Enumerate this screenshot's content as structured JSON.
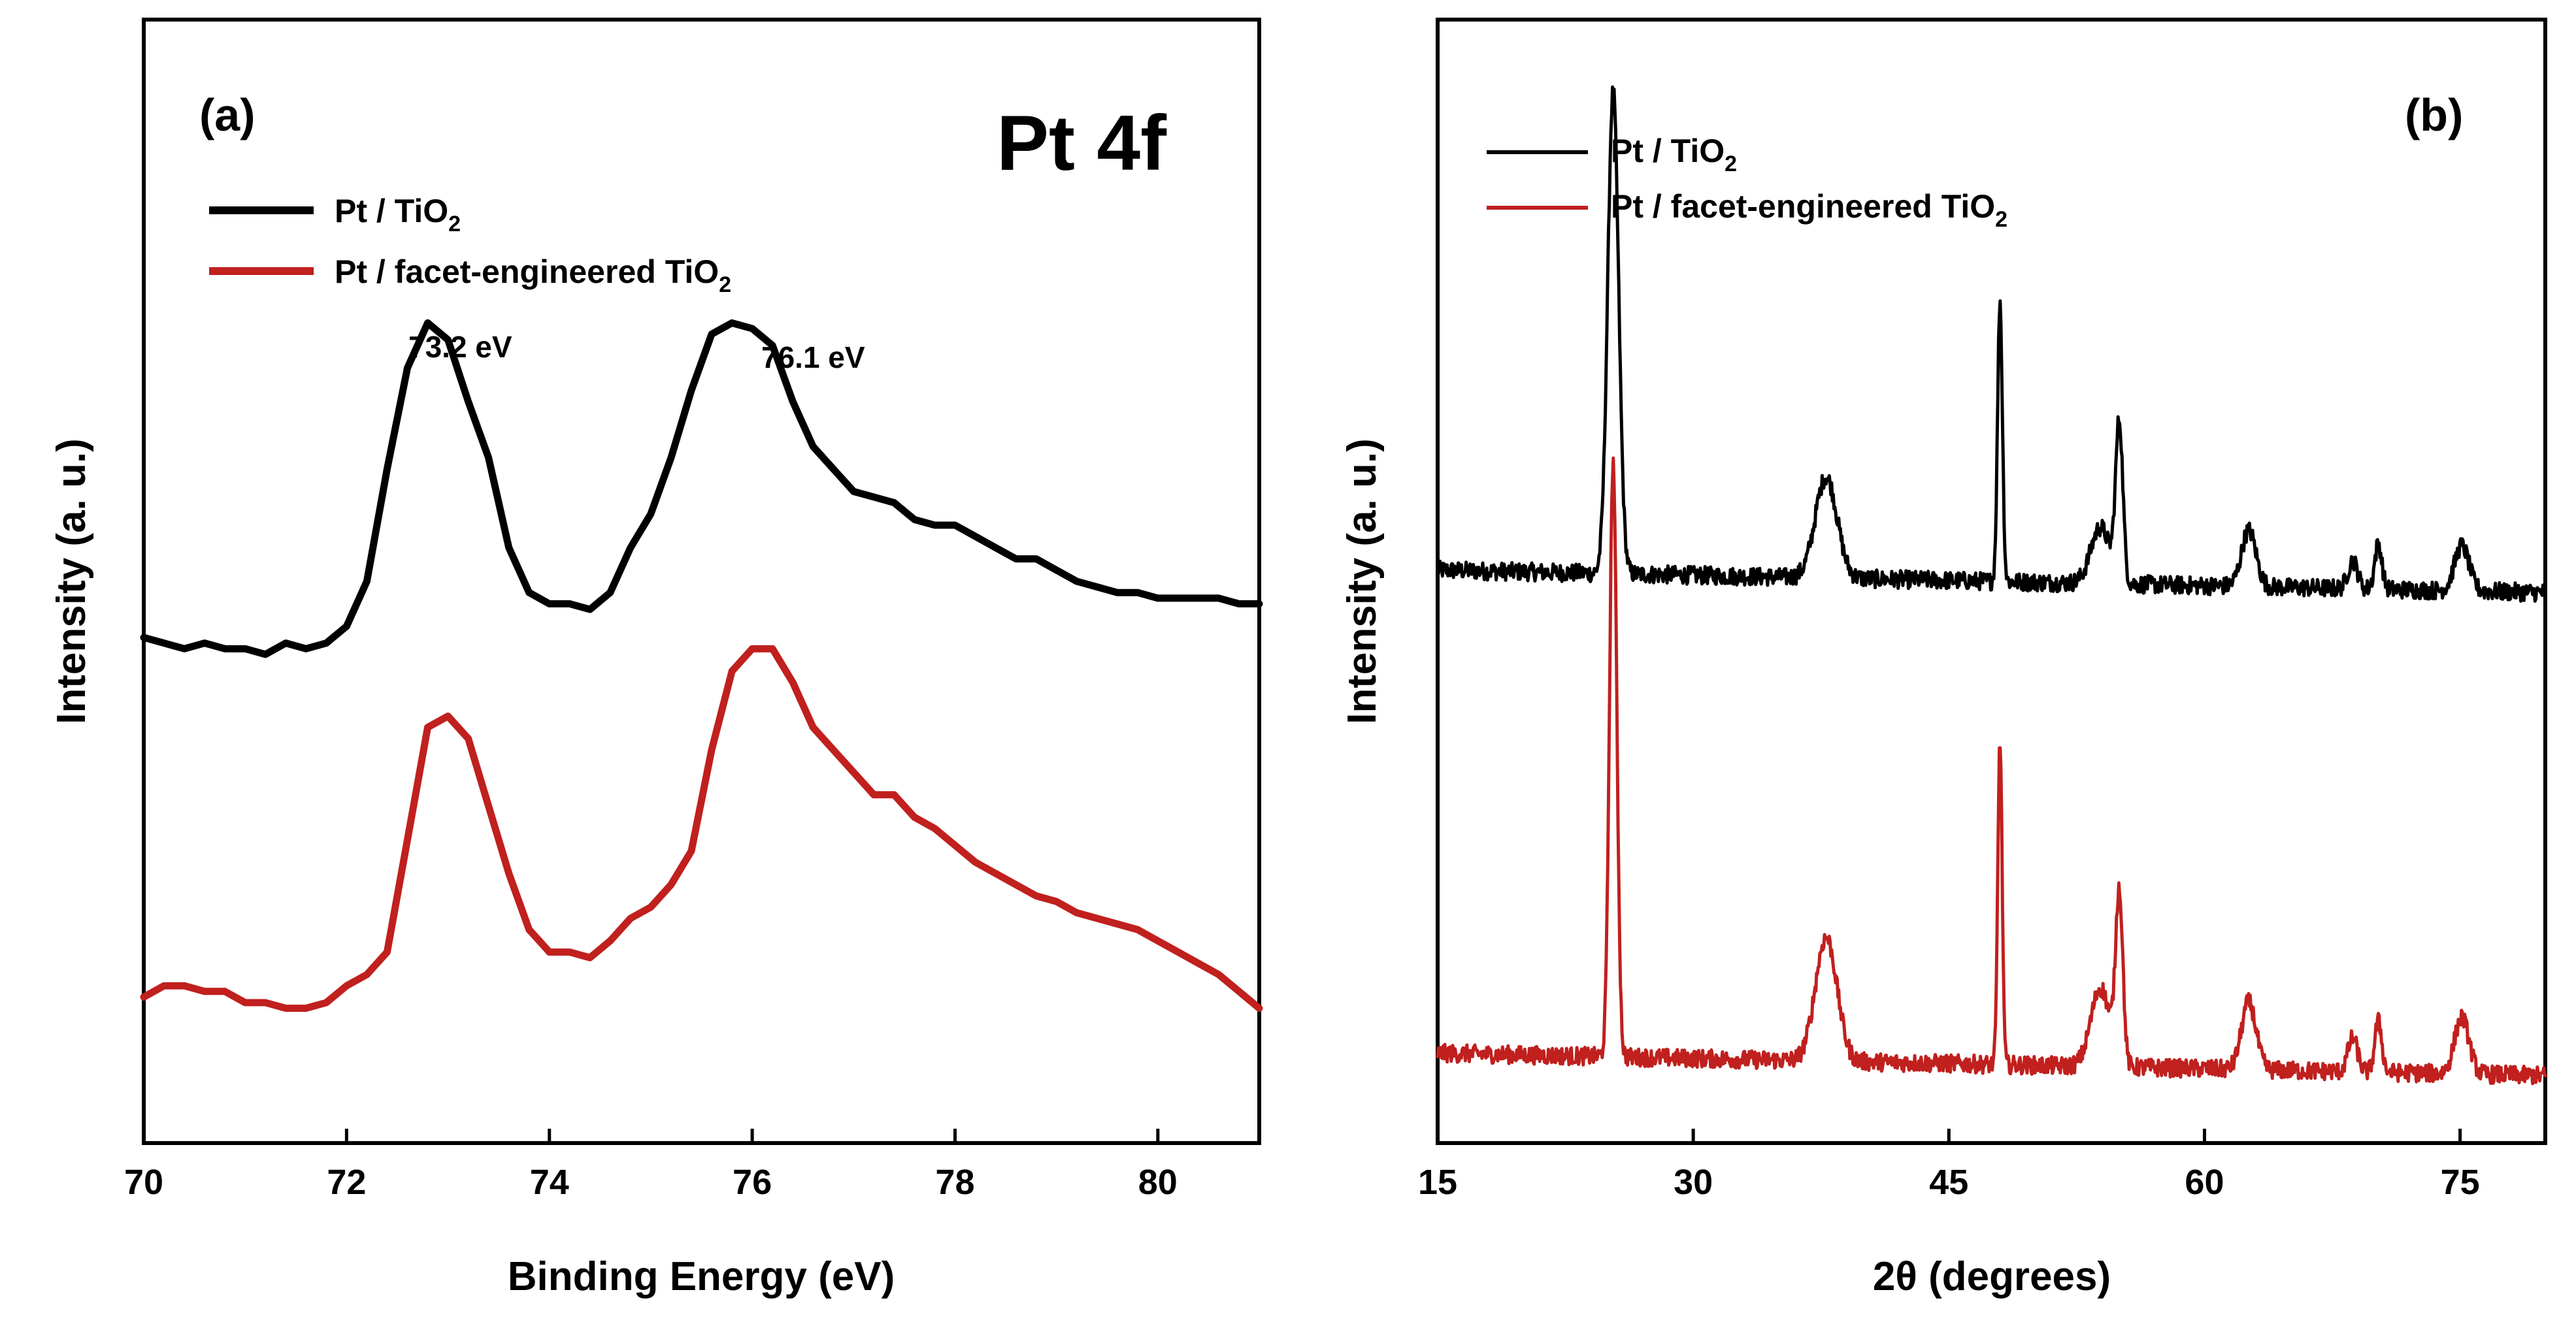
{
  "chart_data": [
    {
      "type": "line",
      "panel_label": "(a)",
      "title": "Pt 4f",
      "xlabel": "Binding Energy (eV)",
      "ylabel": "Intensity (a. u.)",
      "xlim": [
        70,
        81
      ],
      "ylim": [
        0,
        100
      ],
      "xticks": [
        "70",
        "72",
        "74",
        "76",
        "78",
        "80"
      ],
      "yticks_shown": false,
      "grid": false,
      "legend": {
        "placement": "top-left",
        "entries": [
          {
            "main": "Pt / TiO",
            "sub": "2"
          },
          {
            "main": "Pt / facet-engineered TiO",
            "sub": "2"
          }
        ]
      },
      "annotations": [
        {
          "text": "73.2 eV",
          "x": 73.2,
          "y": 87
        },
        {
          "text": "76.1 eV",
          "x": 76.1,
          "y": 86
        }
      ],
      "series": [
        {
          "name": "Pt / TiO2",
          "color": "#000000",
          "x": [
            70.0,
            70.2,
            70.4,
            70.6,
            70.8,
            71.0,
            71.2,
            71.4,
            71.6,
            71.8,
            72.0,
            72.2,
            72.4,
            72.6,
            72.8,
            73.0,
            73.2,
            73.4,
            73.6,
            73.8,
            74.0,
            74.2,
            74.4,
            74.6,
            74.8,
            75.0,
            75.2,
            75.4,
            75.6,
            75.8,
            76.0,
            76.2,
            76.4,
            76.6,
            76.8,
            77.0,
            77.2,
            77.4,
            77.6,
            77.8,
            78.0,
            78.2,
            78.4,
            78.6,
            78.8,
            79.0,
            79.2,
            79.4,
            79.6,
            79.8,
            80.0,
            80.2,
            80.4,
            80.6,
            80.8,
            81.0
          ],
          "y": [
            45,
            44.5,
            44,
            44.5,
            44,
            44,
            43.5,
            44.5,
            44,
            44.5,
            46,
            50,
            60,
            69,
            73,
            71.5,
            66,
            61,
            53,
            49,
            48,
            48,
            47.5,
            49,
            53,
            56,
            61,
            67,
            72,
            73,
            72.5,
            71,
            66,
            62,
            60,
            58,
            57.5,
            57,
            55.5,
            55,
            55,
            54,
            53,
            52,
            52,
            51,
            50,
            49.5,
            49,
            49,
            48.5,
            48.5,
            48.5,
            48.5,
            48,
            48
          ]
        },
        {
          "name": "Pt / facet-engineered TiO2",
          "color": "#c0201e",
          "x": [
            70.0,
            70.2,
            70.4,
            70.6,
            70.8,
            71.0,
            71.2,
            71.4,
            71.6,
            71.8,
            72.0,
            72.2,
            72.4,
            72.6,
            72.8,
            73.0,
            73.2,
            73.4,
            73.6,
            73.8,
            74.0,
            74.2,
            74.4,
            74.6,
            74.8,
            75.0,
            75.2,
            75.4,
            75.6,
            75.8,
            76.0,
            76.2,
            76.4,
            76.6,
            76.8,
            77.0,
            77.2,
            77.4,
            77.6,
            77.8,
            78.0,
            78.2,
            78.4,
            78.6,
            78.8,
            79.0,
            79.2,
            79.4,
            79.6,
            79.8,
            80.0,
            80.2,
            80.4,
            80.6,
            80.8,
            81.0
          ],
          "y": [
            13,
            14,
            14,
            13.5,
            13.5,
            12.5,
            12.5,
            12,
            12,
            12.5,
            14,
            15,
            17,
            27,
            37,
            38,
            36,
            30,
            24,
            19,
            17,
            17,
            16.5,
            18,
            20,
            21,
            23,
            26,
            35,
            42,
            44,
            44,
            41,
            37,
            35,
            33,
            31,
            31,
            29,
            28,
            26.5,
            25,
            24,
            23,
            22,
            21.5,
            20.5,
            20,
            19.5,
            19,
            18,
            17,
            16,
            15,
            13.5,
            12
          ]
        }
      ]
    },
    {
      "type": "line",
      "panel_label": "(b)",
      "xlabel": "2θ (degrees)",
      "ylabel": "Intensity (a. u.)",
      "xlim": [
        15,
        80
      ],
      "ylim": [
        0,
        100
      ],
      "xticks": [
        "15",
        "30",
        "45",
        "60",
        "75"
      ],
      "yticks_shown": false,
      "grid": false,
      "legend": {
        "placement": "top-left",
        "entries": [
          {
            "main": "Pt / TiO",
            "sub": "2"
          },
          {
            "main": "Pt / facet-engineered TiO",
            "sub": "2"
          }
        ]
      },
      "series": [
        {
          "name": "Pt / TiO2",
          "color": "#000000",
          "baseline": 51,
          "end_baseline": 49,
          "peaks": [
            {
              "x": 25.3,
              "height": 43,
              "width": 0.45
            },
            {
              "x": 37.8,
              "height": 9,
              "width": 0.9
            },
            {
              "x": 48.0,
              "height": 25,
              "width": 0.2
            },
            {
              "x": 53.9,
              "height": 5,
              "width": 0.8
            },
            {
              "x": 55.0,
              "height": 14,
              "width": 0.3
            },
            {
              "x": 62.6,
              "height": 5,
              "width": 0.6
            },
            {
              "x": 68.7,
              "height": 2.5,
              "width": 0.4
            },
            {
              "x": 70.2,
              "height": 4,
              "width": 0.3
            },
            {
              "x": 75.1,
              "height": 4,
              "width": 0.6
            }
          ]
        },
        {
          "name": "Pt / facet-engineered TiO2",
          "color": "#c0201e",
          "baseline": 8,
          "end_baseline": 6,
          "peaks": [
            {
              "x": 25.3,
              "height": 53,
              "width": 0.3
            },
            {
              "x": 37.8,
              "height": 11,
              "width": 0.9
            },
            {
              "x": 48.0,
              "height": 29,
              "width": 0.18
            },
            {
              "x": 53.9,
              "height": 7,
              "width": 0.8
            },
            {
              "x": 55.0,
              "height": 15,
              "width": 0.3
            },
            {
              "x": 62.6,
              "height": 6,
              "width": 0.6
            },
            {
              "x": 68.7,
              "height": 3,
              "width": 0.4
            },
            {
              "x": 70.2,
              "height": 4.5,
              "width": 0.3
            },
            {
              "x": 75.1,
              "height": 5,
              "width": 0.6
            }
          ]
        }
      ]
    }
  ]
}
